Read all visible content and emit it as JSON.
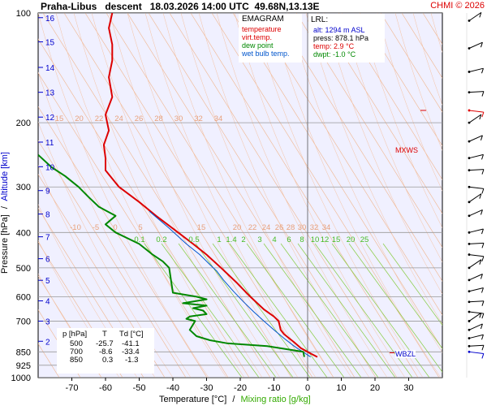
{
  "header": {
    "title": "Praha-Libus   descent   18.03.2026 14:00 UTC  49.68N,13.13E",
    "copyright": "CHMI © 2026"
  },
  "legend": {
    "title": "EMAGRAM",
    "items": [
      {
        "label": "temperature",
        "color": "#dd0000"
      },
      {
        "label": "virt.temp.",
        "color": "#dd0000"
      },
      {
        "label": "dew point",
        "color": "#008800"
      },
      {
        "label": "wet bulb temp.",
        "color": "#0055cc"
      }
    ]
  },
  "lrl": {
    "title": "LRL:",
    "alt": "alt: 1294 m ASL",
    "press": "press: 878.1 hPa",
    "temp": "temp: 2.9 °C",
    "dwpt": "dwpt: -1.0 °C",
    "colors": {
      "alt": "#0000cc",
      "press": "#000000",
      "temp": "#dd0000",
      "dwpt": "#008800"
    }
  },
  "table": {
    "headers": [
      "p [hPa]",
      "T",
      "Td [°C]"
    ],
    "rows": [
      [
        "500",
        "-25.7",
        "-41.1"
      ],
      [
        "700",
        "-8.6",
        "-33.4"
      ],
      [
        "850",
        "0.3",
        "-1.3"
      ]
    ]
  },
  "axes": {
    "xlabel": "Temperature [°C]",
    "xlabel_sep": "/",
    "xlabel2": "Mixing ratio [g/kg]",
    "ylabel": "Pressure [hPa]",
    "ylabel_sep": "/",
    "ylabel2": "Altitude [km]"
  },
  "wind_labels": {
    "mxws": "MXWS",
    "wbzl": "WBZL"
  },
  "chart_data": {
    "type": "line",
    "x_scale": "linear",
    "y_scale": "log",
    "xlim": [
      -80,
      40
    ],
    "ylim": [
      1000,
      100
    ],
    "x_ticks": [
      -70,
      -60,
      -50,
      -40,
      -30,
      -20,
      -10,
      0,
      10,
      20,
      30
    ],
    "y_ticks": [
      100,
      200,
      300,
      400,
      500,
      600,
      700,
      850,
      925,
      1000
    ],
    "altitude_ticks_km": [
      2,
      3,
      4,
      5,
      6,
      7,
      8,
      9,
      10,
      11,
      12,
      13,
      14,
      15,
      16
    ],
    "altitude_tick_pressures": [
      795,
      700,
      616,
      541,
      472,
      411,
      356,
      307,
      264,
      226,
      193,
      165,
      141,
      120,
      103
    ],
    "isotherm_labels": {
      "p200": [
        "15",
        "20",
        "22",
        "24",
        "26",
        "28",
        "30",
        "32",
        "34"
      ],
      "p380": [
        "-10",
        "-5",
        "0",
        "5",
        "15",
        "20",
        "22",
        "24",
        "26",
        "28",
        "30",
        "32",
        "34"
      ]
    },
    "mixing_ratio_labels": [
      "0.1",
      "0.2",
      "0.5",
      "1",
      "1.4",
      "2",
      "3",
      "4",
      "6",
      "8",
      "10",
      "12",
      "15",
      "20",
      "25"
    ],
    "series": [
      {
        "name": "temperature",
        "color": "#dd0000",
        "points": [
          [
            2.9,
            878
          ],
          [
            1,
            860
          ],
          [
            -2,
            830
          ],
          [
            -4,
            800
          ],
          [
            -7,
            760
          ],
          [
            -8,
            740
          ],
          [
            -8.6,
            700
          ],
          [
            -10,
            680
          ],
          [
            -13,
            650
          ],
          [
            -17,
            600
          ],
          [
            -21,
            550
          ],
          [
            -25.7,
            500
          ],
          [
            -30,
            460
          ],
          [
            -34,
            430
          ],
          [
            -40,
            390
          ],
          [
            -45,
            360
          ],
          [
            -50,
            330
          ],
          [
            -56,
            300
          ],
          [
            -60,
            270
          ],
          [
            -60,
            250
          ],
          [
            -60.5,
            230
          ],
          [
            -59,
            210
          ],
          [
            -60,
            190
          ],
          [
            -58,
            170
          ],
          [
            -59,
            150
          ],
          [
            -58,
            135
          ],
          [
            -58,
            122
          ],
          [
            -59,
            110
          ],
          [
            -58,
            100
          ]
        ]
      },
      {
        "name": "wet bulb temp.",
        "color": "#0055cc",
        "points": [
          [
            0.9,
            878
          ],
          [
            -1,
            855
          ],
          [
            -4,
            820
          ],
          [
            -7,
            780
          ],
          [
            -10,
            740
          ],
          [
            -13,
            700
          ],
          [
            -16,
            660
          ],
          [
            -19,
            620
          ],
          [
            -22,
            580
          ],
          [
            -25,
            540
          ],
          [
            -27,
            510
          ],
          [
            -29,
            490
          ],
          [
            -32,
            460
          ],
          [
            -36,
            430
          ],
          [
            -41,
            390
          ],
          [
            -47,
            350
          ]
        ]
      },
      {
        "name": "dew point",
        "color": "#008800",
        "points": [
          [
            -1,
            878
          ],
          [
            -1.3,
            850
          ],
          [
            -12,
            820
          ],
          [
            -24,
            805
          ],
          [
            -29,
            790
          ],
          [
            -33,
            770
          ],
          [
            -35,
            740
          ],
          [
            -33.4,
            700
          ],
          [
            -36,
            690
          ],
          [
            -35,
            680
          ],
          [
            -30,
            670
          ],
          [
            -31,
            655
          ],
          [
            -34,
            645
          ],
          [
            -30,
            635
          ],
          [
            -37,
            625
          ],
          [
            -30,
            610
          ],
          [
            -33,
            600
          ],
          [
            -40,
            585
          ],
          [
            -41.1,
            500
          ],
          [
            -43,
            480
          ],
          [
            -46,
            460
          ],
          [
            -50,
            430
          ],
          [
            -57,
            400
          ],
          [
            -60,
            380
          ],
          [
            -57,
            360
          ],
          [
            -62,
            340
          ],
          [
            -65,
            320
          ],
          [
            -68,
            300
          ],
          [
            -72,
            280
          ],
          [
            -76,
            265
          ],
          [
            -80,
            245
          ]
        ]
      }
    ],
    "grid": true
  }
}
